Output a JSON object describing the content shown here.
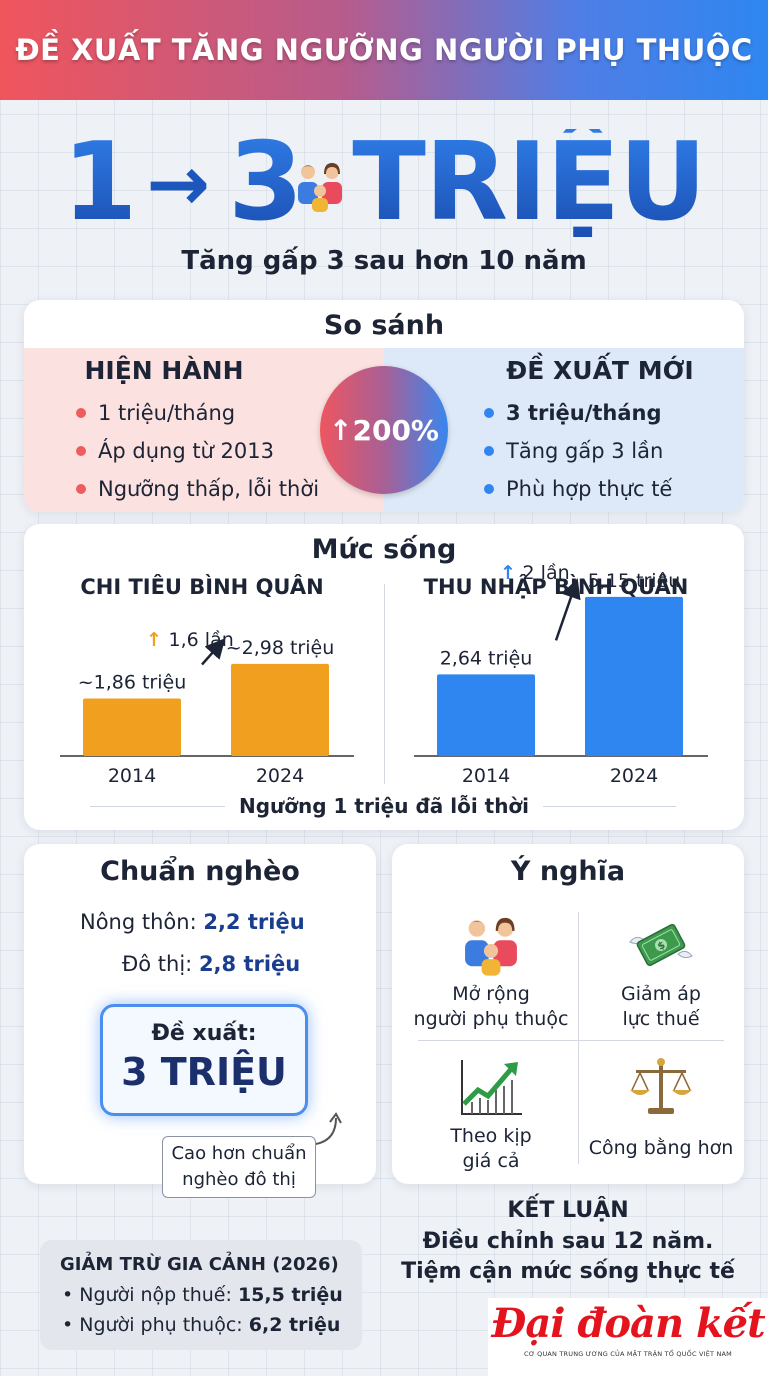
{
  "header": {
    "title": "ĐỀ XUẤT TĂNG NGƯỠNG NGƯỜI PHỤ THUỘC"
  },
  "hero": {
    "from": "1",
    "arrow": "→",
    "to": "3",
    "unit": "TRIỆU",
    "subtitle": "Tăng gấp 3 sau hơn 10 năm"
  },
  "compare": {
    "title": "So sánh",
    "current": {
      "heading": "HIỆN HÀNH",
      "items": [
        "1 triệu/tháng",
        "Áp dụng từ 2013",
        "Ngưỡng thấp, lỗi thời"
      ]
    },
    "increase": "↑200%",
    "proposed": {
      "heading": "ĐỀ XUẤT MỚI",
      "items": [
        "3 triệu/tháng",
        "Tăng gấp 3 lần",
        "Phù hợp thực tế"
      ]
    }
  },
  "living": {
    "title": "Mức sống",
    "footer": "Ngưỡng 1 triệu đã lỗi thời"
  },
  "chart_data": [
    {
      "type": "bar",
      "title": "CHI TIÊU BÌNH QUÂN",
      "categories": [
        "2014",
        "2024"
      ],
      "values": [
        1.86,
        2.98
      ],
      "data_labels": [
        "~1,86 triệu",
        "~2,98 triệu"
      ],
      "growth_label": "1,6 lần",
      "growth_arrow": "↑",
      "ylim": [
        0,
        5.5
      ],
      "color": "#f0a01e"
    },
    {
      "type": "bar",
      "title": "THU NHẬP BÌNH QUÂN",
      "categories": [
        "2014",
        "2024"
      ],
      "values": [
        2.64,
        5.15
      ],
      "data_labels": [
        "2,64 triệu",
        "5,15 triệu"
      ],
      "growth_label": "2 lần",
      "growth_arrow": "↑",
      "ylim": [
        0,
        5.5
      ],
      "color": "#2f86f0"
    }
  ],
  "poverty": {
    "title": "Chuẩn nghèo",
    "rural_label": "Nông thôn:",
    "rural_value": "2,2 triệu",
    "urban_label": "Đô thị:",
    "urban_value": "2,8 triệu",
    "proposal_label": "Đề xuất:",
    "proposal_value": "3 TRIỆU",
    "note_line1": "Cao hơn chuẩn",
    "note_line2": "nghèo đô thị"
  },
  "meaning": {
    "title": "Ý nghĩa",
    "items": [
      {
        "line1": "Mở rộng",
        "line2": "người phụ thuộc",
        "icon": "family-icon"
      },
      {
        "line1": "Giảm áp",
        "line2": "lực thuế",
        "icon": "money-wings-icon"
      },
      {
        "line1": "Theo kịp",
        "line2": "giá cả",
        "icon": "growth-chart-icon"
      },
      {
        "line1": "Công bằng hơn",
        "line2": "",
        "icon": "scales-icon"
      }
    ]
  },
  "deduction": {
    "title": "GIẢM TRỪ GIA CẢNH (2026)",
    "taxpayer_label": "Người nộp thuế:",
    "taxpayer_value": "15,5 triệu",
    "dependent_label": "Người phụ thuộc:",
    "dependent_value": "6,2 triệu"
  },
  "conclusion": {
    "title": "KẾT LUẬN",
    "line1": "Điều chỉnh sau 12 năm.",
    "line2": "Tiệm cận mức sống thực tế"
  },
  "logo": {
    "name": "Đại đoàn kết",
    "tagline": "CƠ QUAN TRUNG ƯƠNG CỦA MẶT TRẬN TỔ QUỐC VIỆT NAM"
  }
}
